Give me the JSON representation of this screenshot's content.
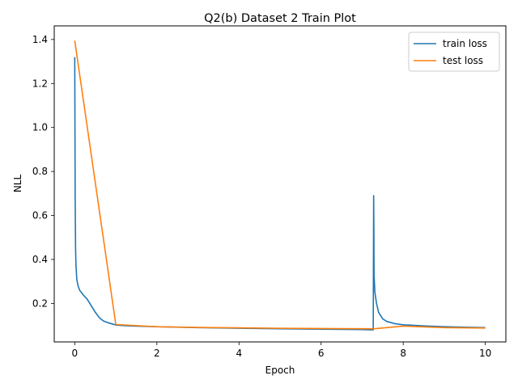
{
  "chart_data": {
    "type": "line",
    "title": "Q2(b) Dataset 2 Train Plot",
    "xlabel": "Epoch",
    "ylabel": "NLL",
    "xlim": [
      -0.5,
      10.5
    ],
    "ylim": [
      0.025,
      1.462
    ],
    "xticks": [
      0,
      2,
      4,
      6,
      8,
      10
    ],
    "xtick_labels": [
      "0",
      "2",
      "4",
      "6",
      "8",
      "10"
    ],
    "yticks": [
      0.2,
      0.4,
      0.6,
      0.8,
      1.0,
      1.2,
      1.4
    ],
    "ytick_labels": [
      "0.2",
      "0.4",
      "0.6",
      "0.8",
      "1.0",
      "1.2",
      "1.4"
    ],
    "grid": false,
    "legend_position": "top-right",
    "series": [
      {
        "name": "train loss",
        "color": "#1f77b4",
        "x": [
          0,
          0.01,
          0.02,
          0.03,
          0.05,
          0.08,
          0.12,
          0.2,
          0.3,
          0.4,
          0.5,
          0.6,
          0.7,
          0.8,
          1.0,
          1.2,
          1.5,
          2.0,
          3.0,
          4.0,
          5.0,
          6.0,
          7.0,
          7.27,
          7.28,
          7.285,
          7.29,
          7.31,
          7.35,
          7.4,
          7.5,
          7.6,
          7.8,
          8.0,
          8.5,
          9.0,
          9.5,
          10.0
        ],
        "y": [
          1.32,
          0.68,
          0.45,
          0.37,
          0.31,
          0.28,
          0.26,
          0.24,
          0.22,
          0.19,
          0.16,
          0.135,
          0.12,
          0.113,
          0.102,
          0.099,
          0.097,
          0.094,
          0.09,
          0.087,
          0.085,
          0.083,
          0.081,
          0.08,
          0.69,
          0.55,
          0.33,
          0.25,
          0.2,
          0.16,
          0.13,
          0.118,
          0.108,
          0.103,
          0.098,
          0.094,
          0.092,
          0.09
        ]
      },
      {
        "name": "test loss",
        "color": "#ff7f0e",
        "x": [
          0,
          1,
          2,
          3,
          4,
          5,
          6,
          7,
          7.3,
          8,
          9,
          10
        ],
        "y": [
          1.395,
          0.104,
          0.094,
          0.091,
          0.089,
          0.087,
          0.086,
          0.085,
          0.085,
          0.097,
          0.09,
          0.088
        ]
      }
    ]
  }
}
